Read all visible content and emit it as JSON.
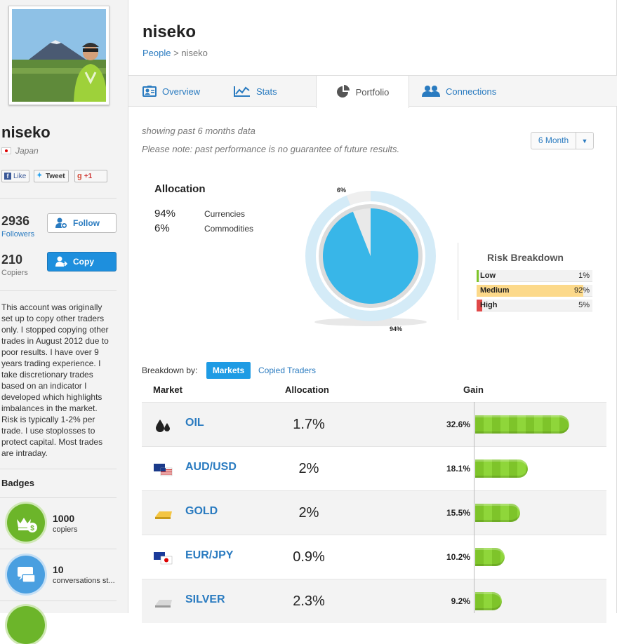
{
  "profile": {
    "username": "niseko",
    "country": "Japan",
    "social": {
      "like": "Like",
      "tweet": "Tweet",
      "gplus": "+1"
    },
    "followers_count": "2936",
    "followers_label": "Followers",
    "follow_button": "Follow",
    "copiers_count": "210",
    "copiers_label": "Copiers",
    "copy_button": "Copy",
    "bio": "This account was originally set up to copy other traders only. I stopped copying other trades in August 2012 due to poor results. I have over 9 years trading experience. I take discretionary trades based on an indicator I developed which highlights imbalances in the market. Risk is typically 1-2% per trade. I use stoplosses to protect capital. Most trades are intraday.",
    "badges_title": "Badges",
    "badges": [
      {
        "number": "1000",
        "label": "copiers",
        "icon": "crown-coin-icon",
        "color": "#6cb52a"
      },
      {
        "number": "10",
        "label": "conversations st...",
        "icon": "speech-bubbles-icon",
        "color": "#4a9fe0"
      }
    ]
  },
  "header": {
    "title": "niseko",
    "breadcrumb_link": "People",
    "breadcrumb_sep": ">",
    "breadcrumb_current": "niseko"
  },
  "tabs": [
    {
      "label": "Overview",
      "icon": "profile-card-icon"
    },
    {
      "label": "Stats",
      "icon": "line-chart-icon"
    },
    {
      "label": "Portfolio",
      "icon": "pie-chart-icon",
      "active": true
    },
    {
      "label": "Connections",
      "icon": "people-icon"
    }
  ],
  "portfolio": {
    "showing_note": "showing past 6 months data",
    "disclaimer": "Please note: past performance is no guarantee of future results.",
    "period_select": "6 Month",
    "allocation_title": "Allocation",
    "allocation": [
      {
        "pct": "94%",
        "name": "Currencies"
      },
      {
        "pct": "6%",
        "name": "Commodities"
      }
    ],
    "donut_labels": {
      "small": "6%",
      "large": "94%"
    },
    "risk_title": "Risk Breakdown",
    "risk": [
      {
        "name": "Low",
        "value": "1%",
        "fraction": 0.01,
        "color": "#7ec42a"
      },
      {
        "name": "Medium",
        "value": "92%",
        "fraction": 0.92,
        "color": "#fcd98a"
      },
      {
        "name": "High",
        "value": "5%",
        "fraction": 0.05,
        "color": "#e04848"
      }
    ],
    "breakdown_label": "Breakdown by:",
    "breakdown_active": "Markets",
    "breakdown_other": "Copied Traders",
    "columns": {
      "market": "Market",
      "allocation": "Allocation",
      "gain": "Gain"
    },
    "markets": [
      {
        "name": "OIL",
        "allocation": "1.7%",
        "gain": "32.6%",
        "gain_value": 32.6,
        "icon": "oil-drops-icon"
      },
      {
        "name": "AUD/USD",
        "allocation": "2%",
        "gain": "18.1%",
        "gain_value": 18.1,
        "icon": "aud-usd-flags-icon"
      },
      {
        "name": "GOLD",
        "allocation": "2%",
        "gain": "15.5%",
        "gain_value": 15.5,
        "icon": "gold-bar-icon"
      },
      {
        "name": "EUR/JPY",
        "allocation": "0.9%",
        "gain": "10.2%",
        "gain_value": 10.2,
        "icon": "eur-jpy-flags-icon"
      },
      {
        "name": "SILVER",
        "allocation": "2.3%",
        "gain": "9.2%",
        "gain_value": 9.2,
        "icon": "silver-bar-icon"
      }
    ]
  },
  "chart_data": {
    "type": "pie",
    "categories": [
      "Currencies",
      "Commodities"
    ],
    "values": [
      94,
      6
    ]
  }
}
